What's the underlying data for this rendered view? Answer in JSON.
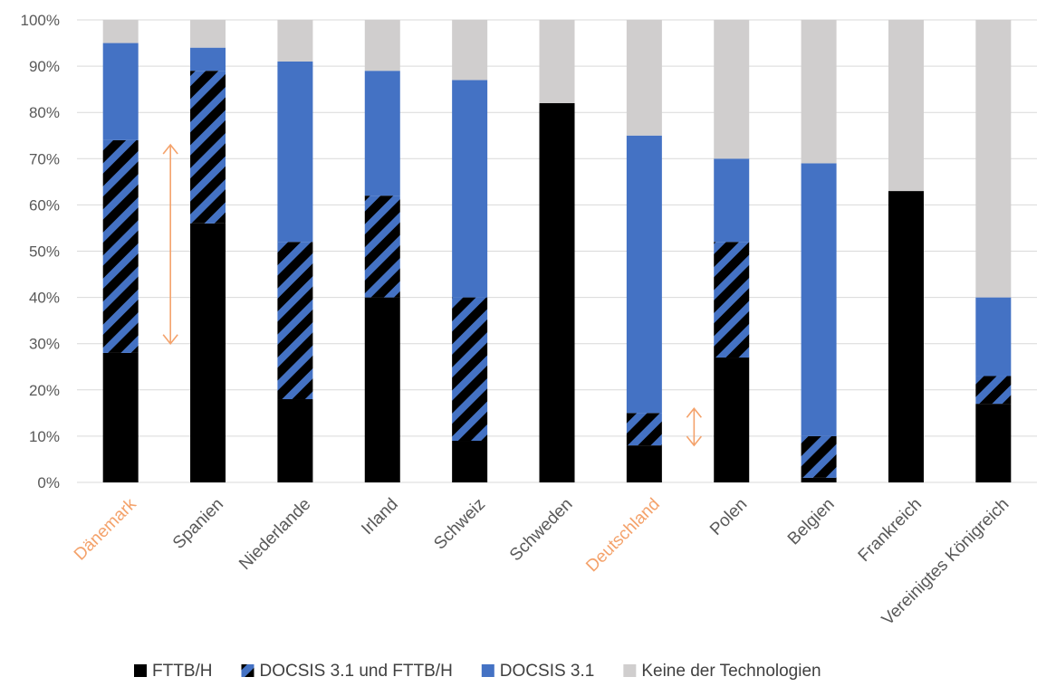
{
  "chart_data": {
    "type": "bar",
    "stacked": true,
    "categories": [
      "Dänemark",
      "Spanien",
      "Niederlande",
      "Irland",
      "Schweiz",
      "Schweden",
      "Deutschland",
      "Polen",
      "Belgien",
      "Frankreich",
      "Vereinigtes Königreich"
    ],
    "highlighted_categories": [
      "Dänemark",
      "Deutschland"
    ],
    "series": [
      {
        "name": "FTTB/H",
        "color": "#000000",
        "pattern": "solid",
        "values": [
          28,
          56,
          18,
          40,
          9,
          82,
          8,
          27,
          1,
          63,
          17
        ]
      },
      {
        "name": "DOCSIS 3.1 und FTTB/H",
        "color": "#4472c4",
        "pattern": "diagonal-hatch",
        "values": [
          46,
          33,
          34,
          22,
          31,
          0,
          7,
          25,
          9,
          0,
          6
        ]
      },
      {
        "name": "DOCSIS 3.1",
        "color": "#4472c4",
        "pattern": "solid",
        "values": [
          21,
          5,
          39,
          27,
          47,
          0,
          60,
          18,
          59,
          0,
          17
        ]
      },
      {
        "name": "Keine der Technologien",
        "color": "#d0cece",
        "pattern": "solid",
        "values": [
          5,
          6,
          9,
          11,
          13,
          18,
          25,
          30,
          31,
          37,
          60
        ]
      }
    ],
    "yticks": [
      "0%",
      "10%",
      "20%",
      "30%",
      "40%",
      "50%",
      "60%",
      "70%",
      "80%",
      "90%",
      "100%"
    ],
    "ylim": [
      0,
      100
    ],
    "grid": true,
    "legend_position": "bottom",
    "annotations": [
      {
        "type": "double-arrow",
        "category": "Dänemark",
        "from": 30,
        "to": 73,
        "color": "#f4a26b"
      },
      {
        "type": "double-arrow",
        "category": "Deutschland",
        "from": 8,
        "to": 16,
        "color": "#f4a26b"
      }
    ],
    "highlight_color": "#f4a26b"
  }
}
